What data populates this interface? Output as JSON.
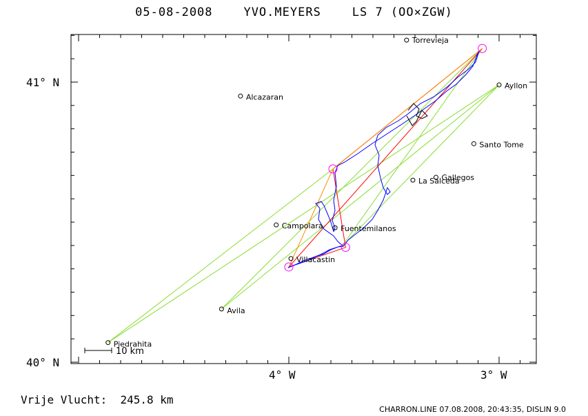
{
  "header": {
    "title": "05-08-2008    YVO.MEYERS    LS 7 (OO×ZGW)"
  },
  "axes": {
    "lat_labels": [
      "41° N",
      "40° N"
    ],
    "lon_labels": [
      "4° W",
      "3° W"
    ]
  },
  "places": [
    {
      "name": "Torrevieja",
      "lon": -3.44,
      "lat": 41.15
    },
    {
      "name": "Alcazaran",
      "lon": -4.23,
      "lat": 40.95
    },
    {
      "name": "Ayllon",
      "lon": -3.0,
      "lat": 40.99
    },
    {
      "name": "Santo Tome",
      "lon": -3.12,
      "lat": 40.78
    },
    {
      "name": "Gallegos",
      "lon": -3.3,
      "lat": 40.66
    },
    {
      "name": "La Salceda",
      "lon": -3.41,
      "lat": 40.65
    },
    {
      "name": "Campolara",
      "lon": -4.06,
      "lat": 40.49
    },
    {
      "name": "Fuentemilanos",
      "lon": -3.78,
      "lat": 40.48
    },
    {
      "name": "Villacastin",
      "lon": -3.99,
      "lat": 40.37
    },
    {
      "name": "Avila",
      "lon": -4.32,
      "lat": 40.19
    },
    {
      "name": "Piedrahita",
      "lon": -4.86,
      "lat": 40.07
    }
  ],
  "scale_bar": {
    "label": "10 km"
  },
  "turnpoints": [
    {
      "lon": -3.08,
      "lat": 41.12
    },
    {
      "lon": -3.79,
      "lat": 40.69
    },
    {
      "lon": -3.73,
      "lat": 40.41
    },
    {
      "lon": -4.0,
      "lat": 40.34
    }
  ],
  "footer": {
    "distance_label": "Vrije Vlucht:  245.8 km",
    "credit": "CHARRON.LINE 07.08.2008, 20:43:35, DISLIN 9.0"
  },
  "colors": {
    "track": "#0000ff",
    "task_line": "#ff0000",
    "optimized_line": "#ff8c00",
    "sector_line": "#88dd33",
    "turnpoint": "#ff00ff",
    "frame": "#000000"
  }
}
